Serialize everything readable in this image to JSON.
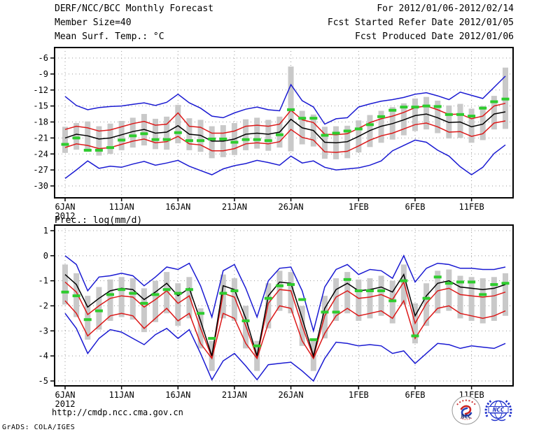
{
  "header": {
    "title": "DERF/NCC/BCC Monthly Forecast",
    "member_size": "Member Size=40",
    "for_range": "For 2012/01/06-2012/02/14",
    "fcst_started": "Fcst Started Refer Date 2012/01/05",
    "fcst_produced": "Fcst Produced Date 2012/01/06"
  },
  "footer": {
    "url": "http://cmdp.ncc.cma.gov.cn",
    "credit": "GrADS: COLA/IGES",
    "logo_bcc": "BCC",
    "logo_ncc": "NCC"
  },
  "colors": {
    "blue": "#1a1ad2",
    "red": "#dc1919",
    "black": "#000000",
    "green": "#2ecc2e",
    "bar": "#c9c9c9",
    "grid": "#999999",
    "frame": "#000000"
  },
  "chart_data": [
    {
      "id": "temperature",
      "type": "line",
      "title": "Mean Surf. Temp.: °C",
      "x_year": "2012",
      "x_tick_labels": [
        "6JAN",
        "11JAN",
        "16JAN",
        "21JAN",
        "26JAN",
        "1FEB",
        "6FEB",
        "11FEB"
      ],
      "x_tick_days": [
        0,
        5,
        10,
        15,
        20,
        26,
        31,
        36
      ],
      "x_range_days": 40,
      "ylim": [
        -32,
        -4
      ],
      "yticks": [
        -6,
        -9,
        -12,
        -15,
        -18,
        -21,
        -24,
        -27,
        -30
      ],
      "grid": "dotted",
      "legend": "none",
      "series": [
        {
          "name": "ensemble-max",
          "color": "#1a1ad2",
          "style": "line",
          "values": [
            -13.2,
            -14.9,
            -15.7,
            -15.3,
            -15.1,
            -15.0,
            -14.7,
            -14.4,
            -14.9,
            -14.3,
            -12.8,
            -14.4,
            -15.4,
            -16.9,
            -17.2,
            -16.3,
            -15.6,
            -15.2,
            -15.7,
            -15.9,
            -11.0,
            -14.0,
            -15.2,
            -18.4,
            -17.4,
            -17.2,
            -15.2,
            -14.6,
            -14.1,
            -13.8,
            -13.4,
            -12.8,
            -12.5,
            -13.1,
            -13.8,
            -12.4,
            -13.0,
            -13.6,
            -11.5,
            -9.4
          ]
        },
        {
          "name": "ensemble-min",
          "color": "#1a1ad2",
          "style": "line",
          "values": [
            -28.6,
            -27.0,
            -25.3,
            -26.7,
            -26.3,
            -26.5,
            -25.9,
            -25.4,
            -26.1,
            -25.7,
            -25.2,
            -26.3,
            -27.1,
            -27.9,
            -26.8,
            -26.2,
            -25.8,
            -25.2,
            -25.6,
            -26.1,
            -24.4,
            -25.7,
            -25.3,
            -26.5,
            -27.0,
            -26.8,
            -26.6,
            -26.1,
            -25.3,
            -23.4,
            -22.4,
            -21.4,
            -21.8,
            -23.3,
            -24.4,
            -26.4,
            -27.9,
            -26.5,
            -23.9,
            -22.3
          ]
        },
        {
          "name": "upper-spread",
          "color": "#dc1919",
          "style": "line",
          "values": [
            -19.4,
            -18.8,
            -19.1,
            -19.7,
            -19.5,
            -18.9,
            -18.3,
            -17.9,
            -18.6,
            -18.4,
            -16.3,
            -18.8,
            -19.0,
            -20.1,
            -20.1,
            -19.7,
            -18.8,
            -18.6,
            -18.8,
            -18.4,
            -15.8,
            -17.6,
            -18.1,
            -20.3,
            -20.4,
            -20.2,
            -19.2,
            -18.1,
            -17.4,
            -16.9,
            -16.2,
            -15.3,
            -15.0,
            -15.7,
            -16.6,
            -16.5,
            -17.4,
            -16.9,
            -15.0,
            -14.5
          ]
        },
        {
          "name": "lower-spread",
          "color": "#dc1919",
          "style": "line",
          "values": [
            -22.8,
            -22.1,
            -22.4,
            -23.0,
            -22.8,
            -22.2,
            -21.6,
            -21.2,
            -21.9,
            -21.7,
            -20.7,
            -22.1,
            -22.3,
            -23.4,
            -23.4,
            -23.0,
            -22.1,
            -21.9,
            -22.1,
            -21.7,
            -19.4,
            -20.9,
            -21.4,
            -23.6,
            -23.7,
            -23.5,
            -22.5,
            -21.4,
            -20.6,
            -20.1,
            -19.3,
            -18.5,
            -18.2,
            -18.9,
            -19.9,
            -19.8,
            -20.7,
            -20.2,
            -18.2,
            -17.8
          ]
        },
        {
          "name": "ensemble-mean",
          "color": "#000000",
          "style": "line",
          "values": [
            -21.0,
            -20.3,
            -20.6,
            -21.2,
            -21.0,
            -20.4,
            -19.8,
            -19.4,
            -20.1,
            -19.9,
            -18.7,
            -20.3,
            -20.5,
            -21.6,
            -21.6,
            -21.2,
            -20.3,
            -20.1,
            -20.3,
            -19.9,
            -17.5,
            -19.1,
            -19.6,
            -21.8,
            -21.9,
            -21.7,
            -20.7,
            -19.6,
            -18.8,
            -18.3,
            -17.6,
            -16.8,
            -16.5,
            -17.2,
            -18.1,
            -18.0,
            -18.9,
            -18.4,
            -16.5,
            -16.1
          ]
        },
        {
          "name": "observation",
          "color": "#2ecc2e",
          "style": "dash",
          "values": [
            -22.2,
            -21.0,
            -23.3,
            -23.3,
            -22.8,
            -21.4,
            -20.6,
            -20.2,
            -21.3,
            -21.3,
            -20.0,
            -21.5,
            -21.5,
            -21.2,
            -21.2,
            -21.8,
            -21.3,
            -21.3,
            -21.5,
            -20.4,
            -15.7,
            -17.3,
            -17.3,
            -20.5,
            -20.1,
            -19.7,
            -19.3,
            -18.5,
            -17.0,
            -15.8,
            -15.2,
            -15.2,
            -15.0,
            -15.1,
            -16.6,
            -16.6,
            -16.9,
            -15.4,
            -14.2,
            -13.7
          ]
        }
      ],
      "bars": {
        "name": "ensemble-spread",
        "color": "#c9c9c9",
        "hi": [
          -18.9,
          -18.2,
          -17.9,
          -18.8,
          -18.3,
          -17.8,
          -17.2,
          -16.5,
          -17.4,
          -17.0,
          -14.8,
          -17.3,
          -17.6,
          -18.8,
          -18.6,
          -18.2,
          -17.5,
          -17.2,
          -17.6,
          -17.0,
          -7.6,
          -15.9,
          -16.6,
          -18.9,
          -18.8,
          -18.7,
          -17.7,
          -16.7,
          -15.9,
          -15.2,
          -14.5,
          -13.6,
          -13.3,
          -14.0,
          -14.9,
          -14.6,
          -15.5,
          -15.0,
          -13.1,
          -7.8
        ],
        "lo": [
          -23.8,
          -23.2,
          -23.6,
          -24.3,
          -24.0,
          -23.3,
          -22.8,
          -22.4,
          -23.1,
          -23.2,
          -22.0,
          -23.3,
          -23.6,
          -24.8,
          -24.6,
          -24.2,
          -23.3,
          -23.0,
          -23.4,
          -22.8,
          -23.5,
          -22.2,
          -22.6,
          -24.9,
          -25.0,
          -24.8,
          -23.7,
          -22.7,
          -21.9,
          -21.3,
          -20.5,
          -19.7,
          -19.4,
          -20.1,
          -21.1,
          -21.0,
          -21.9,
          -21.4,
          -19.4,
          -19.3
        ]
      }
    },
    {
      "id": "precipitation",
      "type": "line",
      "title": "Prec.: log(mm/d)",
      "x_year": "2012",
      "x_tick_labels": [
        "6JAN",
        "11JAN",
        "16JAN",
        "21JAN",
        "26JAN",
        "1FEB",
        "6FEB",
        "11FEB"
      ],
      "x_tick_days": [
        0,
        5,
        10,
        15,
        20,
        26,
        31,
        36
      ],
      "x_range_days": 40,
      "ylim": [
        -5.2,
        1.2
      ],
      "yticks": [
        1,
        0,
        -1,
        -2,
        -3,
        -4,
        -5
      ],
      "grid": "dotted",
      "legend": "none",
      "series": [
        {
          "name": "ensemble-max",
          "color": "#1a1ad2",
          "style": "line",
          "values": [
            0,
            -0.35,
            -1.4,
            -0.85,
            -0.8,
            -0.7,
            -0.8,
            -1.2,
            -0.85,
            -0.45,
            -0.55,
            -0.3,
            -1.2,
            -2.45,
            -0.6,
            -0.35,
            -1.3,
            -2.45,
            -1.0,
            -0.5,
            -0.45,
            -1.4,
            -3.0,
            -1.25,
            -0.55,
            -0.35,
            -0.75,
            -0.55,
            -0.6,
            -0.9,
            0,
            -1.05,
            -0.5,
            -0.3,
            -0.35,
            -0.5,
            -0.5,
            -0.55,
            -0.55,
            -0.45
          ]
        },
        {
          "name": "ensemble-min",
          "color": "#1a1ad2",
          "style": "line",
          "values": [
            -2.3,
            -2.9,
            -3.9,
            -3.3,
            -2.95,
            -3.05,
            -3.3,
            -3.55,
            -3.15,
            -2.9,
            -3.3,
            -2.95,
            -3.9,
            -4.95,
            -4.2,
            -3.9,
            -4.4,
            -4.95,
            -4.35,
            -4.3,
            -4.25,
            -4.6,
            -5.0,
            -4.1,
            -3.45,
            -3.5,
            -3.6,
            -3.55,
            -3.6,
            -3.9,
            -3.8,
            -4.3,
            -3.9,
            -3.5,
            -3.55,
            -3.7,
            -3.6,
            -3.65,
            -3.7,
            -3.5
          ]
        },
        {
          "name": "upper-spread",
          "color": "#dc1919",
          "style": "line",
          "values": [
            -1.05,
            -1.45,
            -2.35,
            -2.0,
            -1.7,
            -1.6,
            -1.65,
            -2.05,
            -1.75,
            -1.4,
            -1.9,
            -1.6,
            -2.9,
            -4.05,
            -1.5,
            -1.65,
            -2.8,
            -4.05,
            -1.9,
            -1.35,
            -1.4,
            -2.8,
            -4.05,
            -2.4,
            -1.65,
            -1.4,
            -1.7,
            -1.65,
            -1.55,
            -1.75,
            -1.05,
            -2.7,
            -1.9,
            -1.4,
            -1.3,
            -1.55,
            -1.6,
            -1.65,
            -1.6,
            -1.45
          ]
        },
        {
          "name": "lower-spread",
          "color": "#dc1919",
          "style": "line",
          "values": [
            -1.8,
            -2.3,
            -3.2,
            -2.8,
            -2.4,
            -2.3,
            -2.4,
            -2.9,
            -2.5,
            -2.1,
            -2.6,
            -2.3,
            -3.5,
            -4.1,
            -2.3,
            -2.5,
            -3.5,
            -4.1,
            -2.7,
            -2.0,
            -2.1,
            -3.4,
            -4.1,
            -3.1,
            -2.4,
            -2.1,
            -2.4,
            -2.3,
            -2.2,
            -2.5,
            -1.8,
            -3.3,
            -2.6,
            -2.1,
            -2.0,
            -2.3,
            -2.4,
            -2.5,
            -2.4,
            -2.2
          ]
        },
        {
          "name": "ensemble-mean",
          "color": "#000000",
          "style": "line",
          "values": [
            -0.75,
            -1.15,
            -2.05,
            -1.7,
            -1.4,
            -1.3,
            -1.35,
            -1.75,
            -1.45,
            -1.1,
            -1.6,
            -1.3,
            -2.6,
            -4.0,
            -1.2,
            -1.35,
            -2.5,
            -4.0,
            -1.6,
            -1.05,
            -1.1,
            -2.5,
            -4.0,
            -2.1,
            -1.35,
            -1.1,
            -1.4,
            -1.35,
            -1.25,
            -1.45,
            -0.75,
            -2.4,
            -1.6,
            -1.1,
            -1.0,
            -1.25,
            -1.3,
            -1.35,
            -1.3,
            -1.15
          ]
        },
        {
          "name": "observation",
          "color": "#2ecc2e",
          "style": "dash",
          "values": [
            -1.45,
            -1.6,
            -2.55,
            -2.2,
            -1.55,
            -1.35,
            -1.5,
            -1.9,
            -1.55,
            -1.35,
            -1.5,
            -1.35,
            -2.3,
            -3.3,
            -1.5,
            -1.4,
            -2.6,
            -3.6,
            -1.7,
            -1.2,
            -1.15,
            -1.75,
            -3.35,
            -2.25,
            -2.25,
            -0.95,
            -1.4,
            -1.4,
            -1.4,
            -1.8,
            -1.0,
            -3.2,
            -1.7,
            -0.85,
            -1.1,
            -1.05,
            -1.05,
            -1.55,
            -1.15,
            -1.1
          ]
        }
      ],
      "bars": {
        "name": "ensemble-spread",
        "color": "#c9c9c9",
        "hi": [
          -0.35,
          -0.7,
          -1.6,
          -1.25,
          -0.95,
          -0.85,
          -0.9,
          -1.3,
          -1.0,
          -0.65,
          -1.1,
          -0.85,
          -2.1,
          -3.4,
          -0.75,
          -0.9,
          -2.0,
          -3.4,
          -1.1,
          -0.6,
          -0.65,
          -2.0,
          -3.3,
          -1.6,
          -0.9,
          -0.65,
          -0.95,
          -0.9,
          -0.8,
          -1.0,
          -0.35,
          -1.9,
          -1.1,
          -0.6,
          -0.55,
          -0.8,
          -0.85,
          -0.9,
          -0.85,
          -0.7
        ],
        "lo": [
          -1.95,
          -2.45,
          -3.35,
          -2.95,
          -2.6,
          -2.45,
          -2.55,
          -3.05,
          -2.65,
          -2.3,
          -2.8,
          -2.5,
          -3.7,
          -4.6,
          -2.5,
          -2.6,
          -3.7,
          -4.6,
          -2.9,
          -2.2,
          -2.3,
          -3.6,
          -4.6,
          -3.3,
          -2.6,
          -2.3,
          -2.6,
          -2.5,
          -2.4,
          -2.7,
          -1.95,
          -3.5,
          -2.8,
          -2.3,
          -2.2,
          -2.5,
          -2.6,
          -2.7,
          -2.6,
          -2.4
        ]
      }
    }
  ]
}
